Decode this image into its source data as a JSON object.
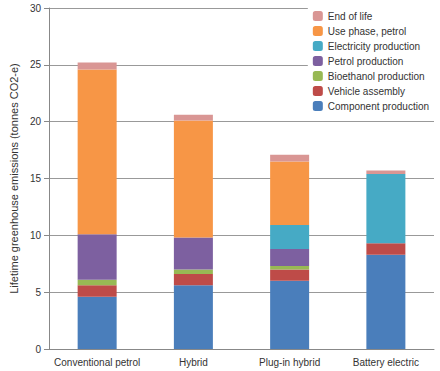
{
  "chart_data": {
    "type": "bar",
    "stacked": true,
    "grid": true,
    "legend": "upper right",
    "y_label": "Lifetime greenhouse emissions (tonnes CO2-e)",
    "categories": [
      "Conventional petrol",
      "Hybrid",
      "Plug-in hybrid",
      "Battery electric"
    ],
    "ylim": [
      0,
      30
    ],
    "yticks": [
      0,
      5,
      10,
      15,
      20,
      25,
      30
    ],
    "series": [
      {
        "name": "Component production",
        "color": "#4a7ebb",
        "values": [
          4.6,
          5.6,
          6.0,
          8.3
        ]
      },
      {
        "name": "Vehicle assembly",
        "color": "#be4b48",
        "values": [
          1.0,
          1.0,
          1.0,
          1.0
        ]
      },
      {
        "name": "Bioethanol production",
        "color": "#98b954",
        "values": [
          0.5,
          0.4,
          0.3,
          0
        ]
      },
      {
        "name": "Petrol production",
        "color": "#7d60a0",
        "values": [
          4.0,
          2.8,
          1.5,
          0
        ]
      },
      {
        "name": "Electricity production",
        "color": "#46aac5",
        "values": [
          0,
          0,
          2.1,
          6.1
        ]
      },
      {
        "name": "Use phase, petrol",
        "color": "#f79646",
        "values": [
          14.5,
          10.3,
          5.6,
          0
        ]
      },
      {
        "name": "End of life",
        "color": "#d99694",
        "values": [
          0.6,
          0.5,
          0.6,
          0.3
        ]
      }
    ]
  }
}
